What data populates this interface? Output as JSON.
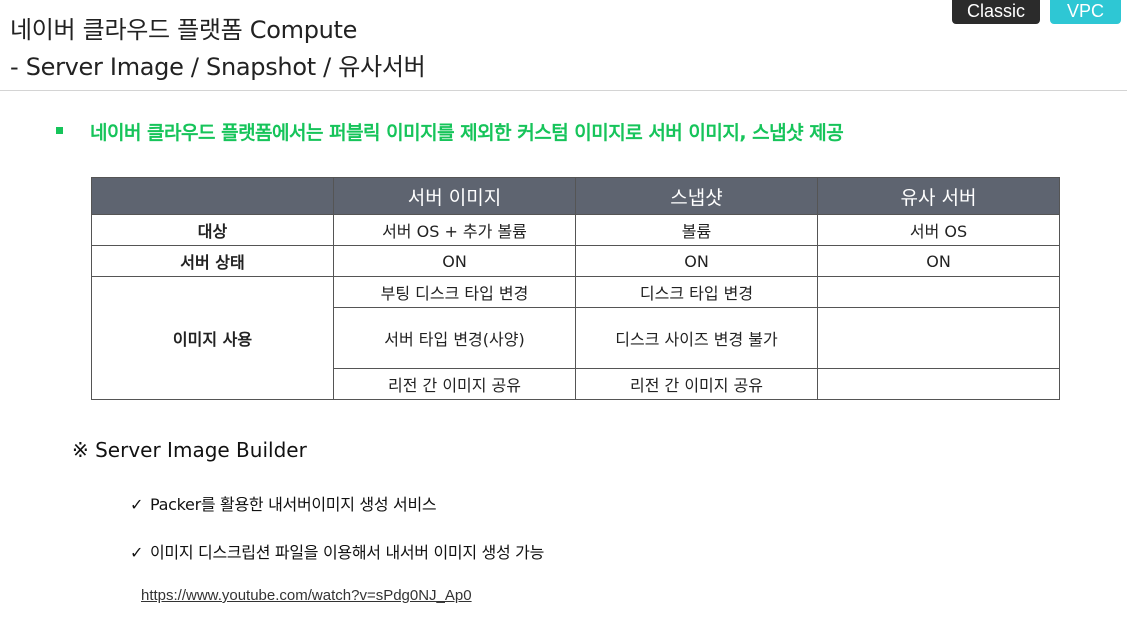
{
  "header": {
    "title_line1": "네이버 클라우드 플랫폼 Compute",
    "title_line2": "- Server Image /  Snapshot / 유사서버",
    "tags": {
      "classic": "Classic",
      "vpc": "VPC"
    }
  },
  "subtitle": "네이버 클라우드 플랫폼에서는 퍼블릭 이미지를 제외한 커스텀 이미지로 서버 이미지, 스냅샷 제공",
  "colors": {
    "accent_green": "#16c45a",
    "tag_classic": "#2b2b2b",
    "tag_vpc": "#2ec7d4",
    "table_header": "#5e6470"
  },
  "table": {
    "headers": [
      "",
      "서버 이미지",
      "스냅샷",
      "유사 서버"
    ],
    "rows": [
      {
        "label": "대상",
        "cells": [
          "서버 OS + 추가 볼륨",
          "볼륨",
          "서버 OS"
        ]
      },
      {
        "label": "서버 상태",
        "cells": [
          "ON",
          "ON",
          "ON"
        ]
      }
    ],
    "image_use": {
      "label": "이미지 사용",
      "rows": [
        [
          "부팅 디스크 타입 변경",
          "디스크 타입 변경",
          ""
        ],
        [
          "서버 타입 변경(사양)",
          "디스크 사이즈 변경 불가",
          ""
        ],
        [
          "리전 간 이미지 공유",
          "리전 간 이미지 공유",
          ""
        ]
      ]
    }
  },
  "note": {
    "heading": "※ Server Image Builder",
    "items": [
      {
        "check": "✓",
        "text": "Packer를 활용한 내서버이미지 생성 서비스"
      },
      {
        "check": "✓",
        "text": "이미지 디스크립션 파일을 이용해서 내서버 이미지 생성 가능"
      }
    ],
    "link": "https://www.youtube.com/watch?v=sPdg0NJ_Ap0"
  }
}
